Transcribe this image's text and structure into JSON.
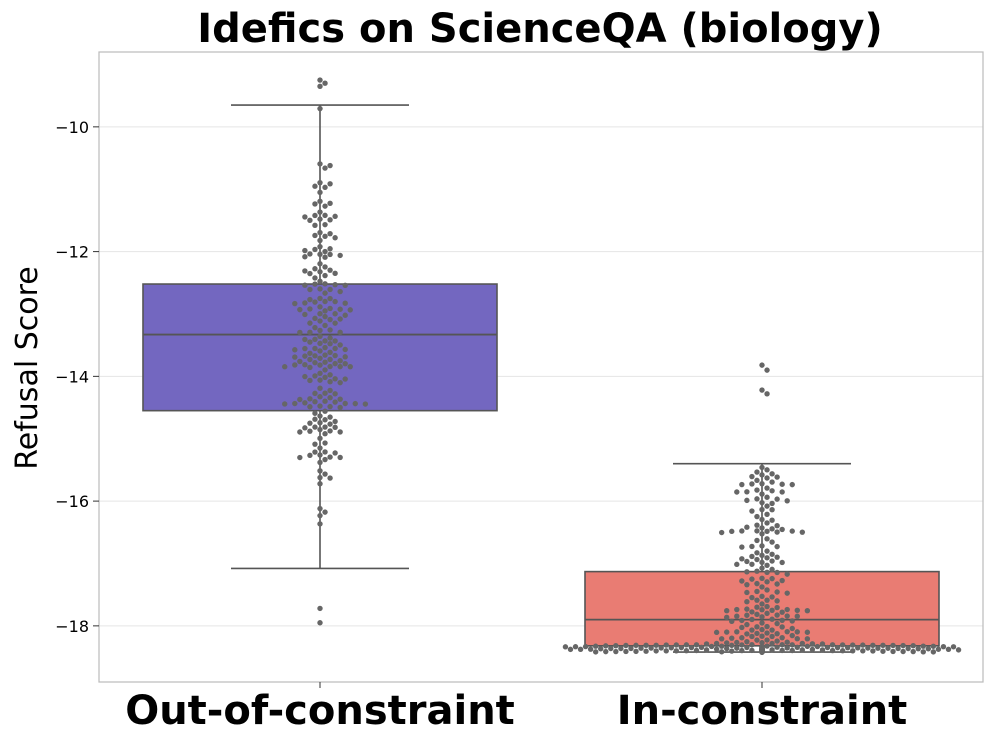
{
  "chart_data": {
    "type": "box",
    "overlay": "swarm",
    "title": "Idefics on ScienceQA (biology)",
    "xlabel": "",
    "ylabel": "Refusal Score",
    "ylim": [
      -18.9,
      -8.8
    ],
    "yticks": [
      -10,
      -12,
      -14,
      -16,
      -18
    ],
    "ytick_labels": [
      "−10",
      "−12",
      "−14",
      "−16",
      "−18"
    ],
    "grid": true,
    "categories": [
      "Out-of-constraint",
      "In-constraint"
    ],
    "colors": {
      "Out-of-constraint": "#7367c0",
      "In-constraint": "#e97c73",
      "box_edge": "#555555",
      "points": "#666666",
      "grid": "#e5e5e5",
      "spine": "#bbbbbb"
    },
    "boxes": [
      {
        "category": "Out-of-constraint",
        "whisker_low": -17.08,
        "q1": -14.55,
        "median": -13.33,
        "q3": -12.52,
        "whisker_high": -9.65
      },
      {
        "category": "In-constraint",
        "whisker_low": -18.42,
        "q1": -18.32,
        "median": -17.9,
        "q3": -17.13,
        "whisker_high": -15.4
      }
    ],
    "outliers": {
      "Out-of-constraint": [
        -9.25,
        -9.3,
        -9.35,
        -17.72,
        -17.95
      ],
      "In-constraint": [
        -13.82,
        -13.9,
        -14.22,
        -14.28
      ]
    }
  }
}
